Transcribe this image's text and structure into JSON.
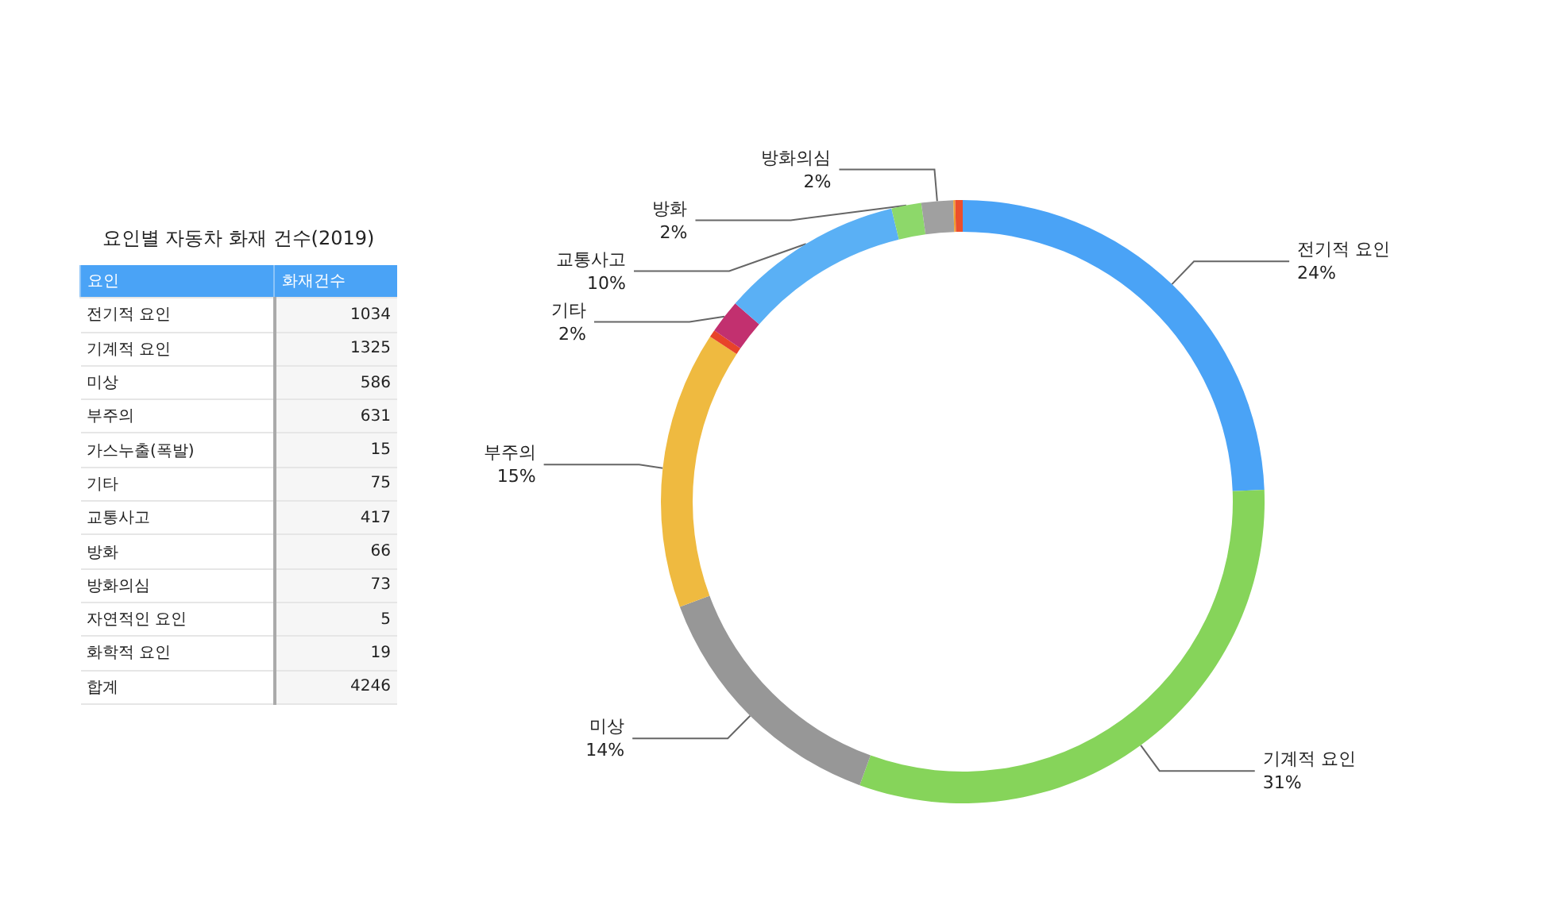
{
  "chart_data": [
    {
      "type": "other",
      "title": "요인별 자동차 화재 건수(2019)",
      "categories": [
        "전기적 요인",
        "기계적 요인",
        "미상",
        "부주의",
        "가스누출(폭발)",
        "기타",
        "교통사고",
        "방화",
        "방화의심",
        "자연적인 요인",
        "화학적 요인"
      ],
      "values": [
        1034,
        1325,
        586,
        631,
        15,
        75,
        417,
        66,
        73,
        5,
        19
      ],
      "data_labels": true,
      "annotations": [
        "요인",
        "화재건수",
        "합계"
      ],
      "totals": [
        "4246"
      ]
    },
    {
      "type": "donut",
      "categories": [
        "전기적 요인",
        "기계적 요인",
        "미상",
        "부주의",
        null,
        "기타",
        "교통사고",
        "방화",
        "방화의심",
        null,
        null
      ],
      "values": [
        24.4,
        31.2,
        13.8,
        14.9,
        0.4,
        1.8,
        9.8,
        1.6,
        1.7,
        0.1,
        0.4
      ],
      "colors": [
        "#4aa3f6",
        "#86d45a",
        "#979797",
        "#efba40",
        "#e8432a",
        "#c2306f",
        "#5ab0f5",
        "#8dd86a",
        "#a0a0a0",
        "#f0a030",
        "#ec4f2c"
      ],
      "value_labels": [
        "24%",
        "31%",
        "14%",
        "15%",
        null,
        "2%",
        "10%",
        "2%",
        "2%",
        null,
        null
      ],
      "legend": false
    }
  ]
}
